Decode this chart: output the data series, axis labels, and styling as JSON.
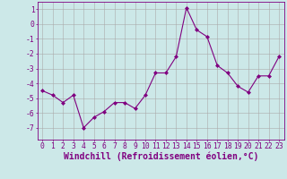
{
  "x": [
    0,
    1,
    2,
    3,
    4,
    5,
    6,
    7,
    8,
    9,
    10,
    11,
    12,
    13,
    14,
    15,
    16,
    17,
    18,
    19,
    20,
    21,
    22,
    23
  ],
  "y": [
    -4.5,
    -4.8,
    -5.3,
    -4.8,
    -7.0,
    -6.3,
    -5.9,
    -5.3,
    -5.3,
    -5.7,
    -4.8,
    -3.3,
    -3.3,
    -2.2,
    1.1,
    -0.4,
    -0.85,
    -2.8,
    -3.3,
    -4.2,
    -4.6,
    -3.5,
    -3.5,
    -2.2
  ],
  "line_color": "#800080",
  "marker": "D",
  "marker_size": 2.0,
  "bg_color": "#cce8e8",
  "grid_color": "#aaaaaa",
  "xlabel": "Windchill (Refroidissement éolien,°C)",
  "xlim": [
    -0.5,
    23.5
  ],
  "ylim": [
    -7.8,
    1.5
  ],
  "yticks": [
    -7,
    -6,
    -5,
    -4,
    -3,
    -2,
    -1,
    0,
    1
  ],
  "xtick_labels": [
    "0",
    "1",
    "2",
    "3",
    "4",
    "5",
    "6",
    "7",
    "8",
    "9",
    "10",
    "11",
    "12",
    "13",
    "14",
    "15",
    "16",
    "17",
    "18",
    "19",
    "20",
    "21",
    "22",
    "23"
  ],
  "axis_fontsize": 6.5,
  "tick_fontsize": 5.8,
  "xlabel_fontsize": 7.0
}
